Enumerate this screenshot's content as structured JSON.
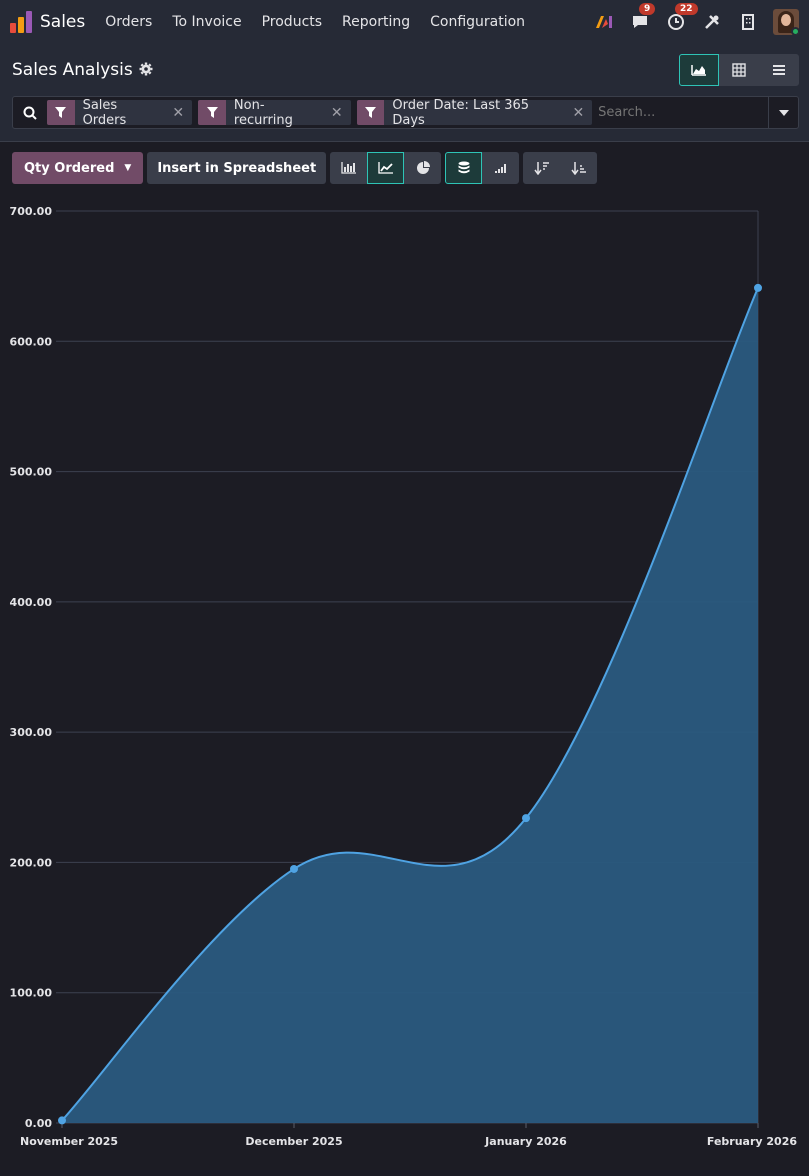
{
  "navbar": {
    "brand": "Sales",
    "menu": [
      "Orders",
      "To Invoice",
      "Products",
      "Reporting",
      "Configuration"
    ],
    "messages_count": "9",
    "activities_count": "22"
  },
  "control": {
    "title": "Sales Analysis",
    "facets": [
      "Sales Orders",
      "Non-recurring",
      "Order Date: Last 365 Days"
    ],
    "search_placeholder": "Search..."
  },
  "toolbar": {
    "measure_label": "Qty Ordered",
    "insert_label": "Insert in Spreadsheet"
  },
  "colors": {
    "accent": "#714b67",
    "active_border": "#2ec4b6",
    "line": "#4fa3e3",
    "area": "#2a5a80"
  },
  "chart_data": {
    "type": "area",
    "categories": [
      "November 2025",
      "December 2025",
      "January 2026",
      "February 2026"
    ],
    "series": [
      {
        "values": [
          2,
          195,
          234,
          641
        ]
      }
    ],
    "ylim": [
      0,
      700
    ],
    "yticks": [
      "0.00",
      "100.00",
      "200.00",
      "300.00",
      "400.00",
      "500.00",
      "600.00",
      "700.00"
    ],
    "grid": true
  }
}
